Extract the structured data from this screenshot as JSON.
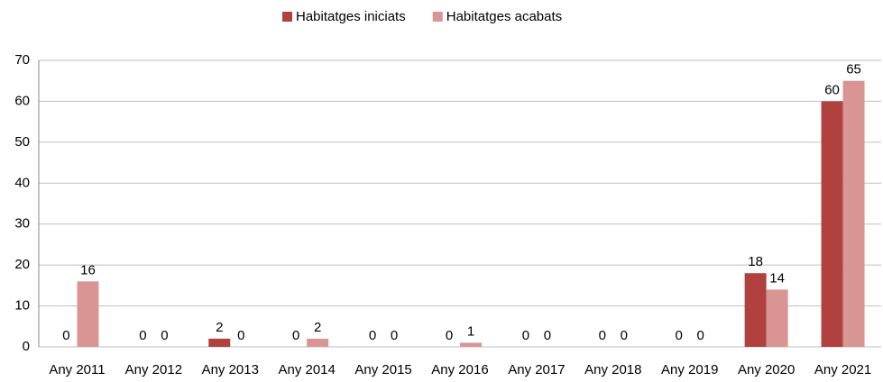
{
  "chart_data": {
    "type": "bar",
    "categories": [
      "Any 2011",
      "Any 2012",
      "Any 2013",
      "Any 2014",
      "Any 2015",
      "Any 2016",
      "Any 2017",
      "Any 2018",
      "Any 2019",
      "Any 2020",
      "Any 2021"
    ],
    "series": [
      {
        "name": "Habitatges iniciats",
        "color": "#b0413e",
        "values": [
          0,
          0,
          2,
          0,
          0,
          0,
          0,
          0,
          0,
          18,
          60
        ]
      },
      {
        "name": "Habitatges acabats",
        "color": "#d99594",
        "values": [
          16,
          0,
          0,
          2,
          0,
          1,
          0,
          0,
          0,
          14,
          65
        ]
      }
    ],
    "ylim": [
      0,
      70
    ],
    "yticks": [
      0,
      10,
      20,
      30,
      40,
      50,
      60,
      70
    ],
    "grid": true,
    "legend": "top"
  }
}
